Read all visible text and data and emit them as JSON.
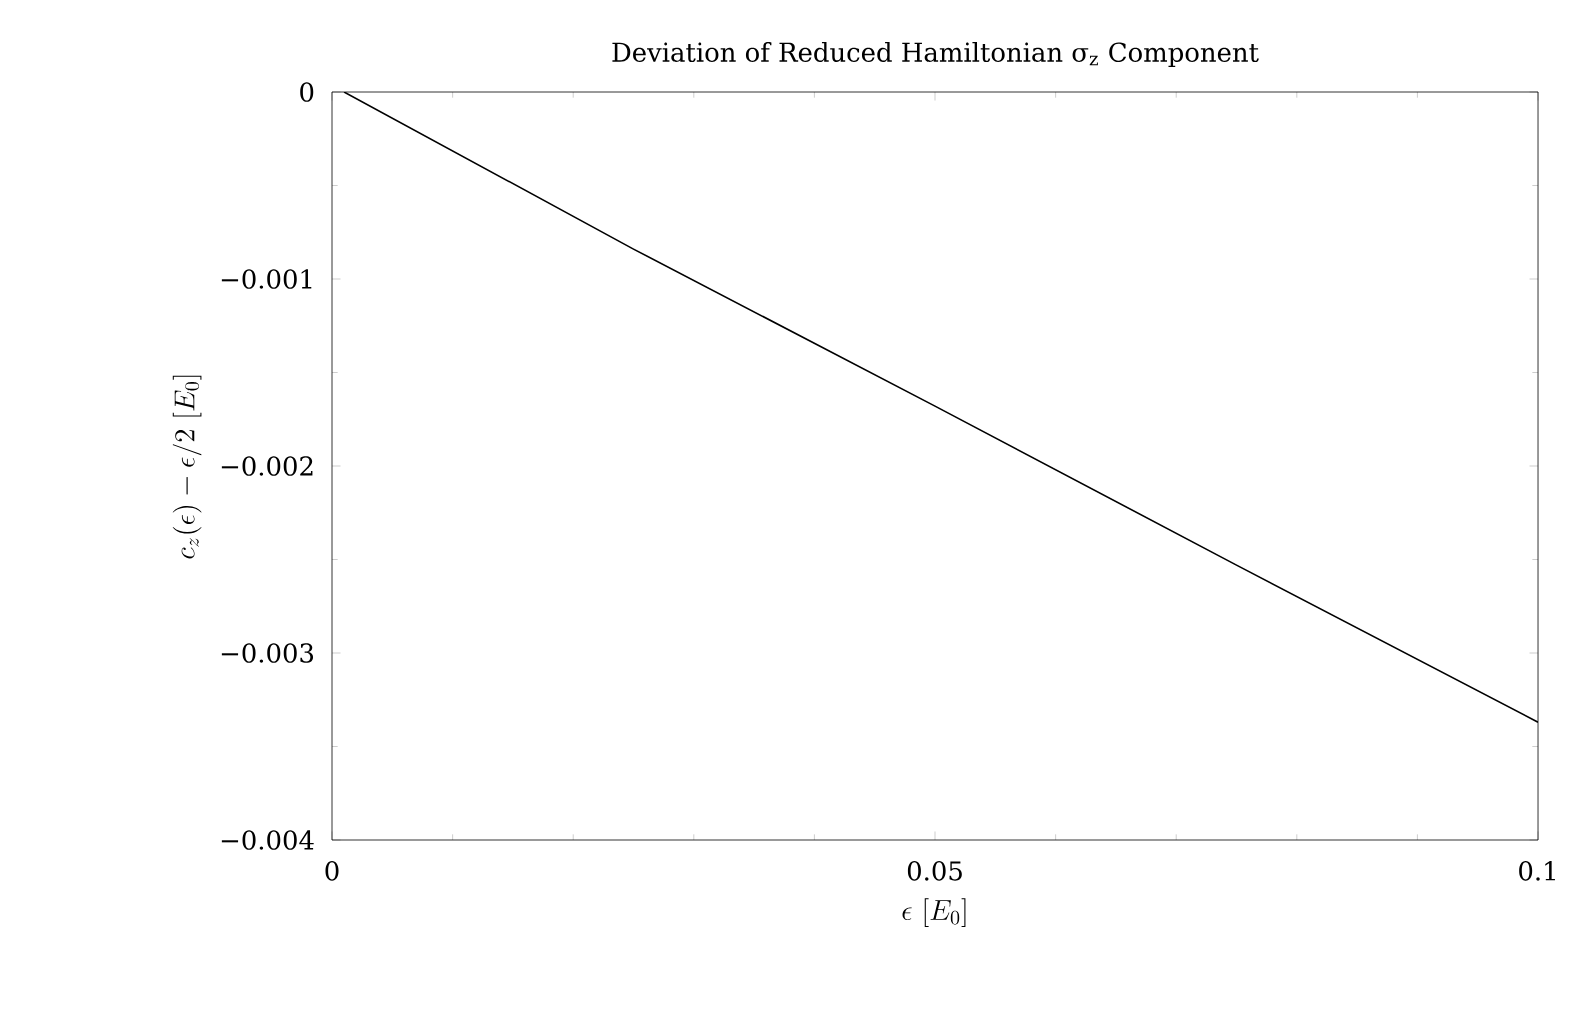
{
  "chart_data": {
    "type": "line",
    "title": "Deviation of Reduced Hamiltonian σ$_{z}$ Component",
    "xlabel": "\\epsilon\\ [E_0]",
    "ylabel": "c_z(\\epsilon) - \\epsilon/2\\ [E_0]",
    "x": [
      0.001,
      0.025,
      0.05,
      0.075,
      0.1
    ],
    "series": [
      {
        "color": "#000000",
        "values": [
          0,
          -0.00084,
          -0.00168,
          -0.00253,
          -0.00337
        ]
      }
    ],
    "xlim": [
      0,
      0.1
    ],
    "ylim": [
      -0.004,
      0
    ],
    "xticks": [
      0,
      0.05,
      0.1
    ],
    "yticks": [
      {
        "value": -0.004,
        "label": "−0.004"
      },
      {
        "value": -0.003,
        "label": "−0.003"
      },
      {
        "value": -0.002,
        "label": "−0.002"
      },
      {
        "value": -0.001,
        "label": "−0.001"
      },
      0
    ],
    "marker": "none",
    "line_style": "solid",
    "grid": false
  }
}
